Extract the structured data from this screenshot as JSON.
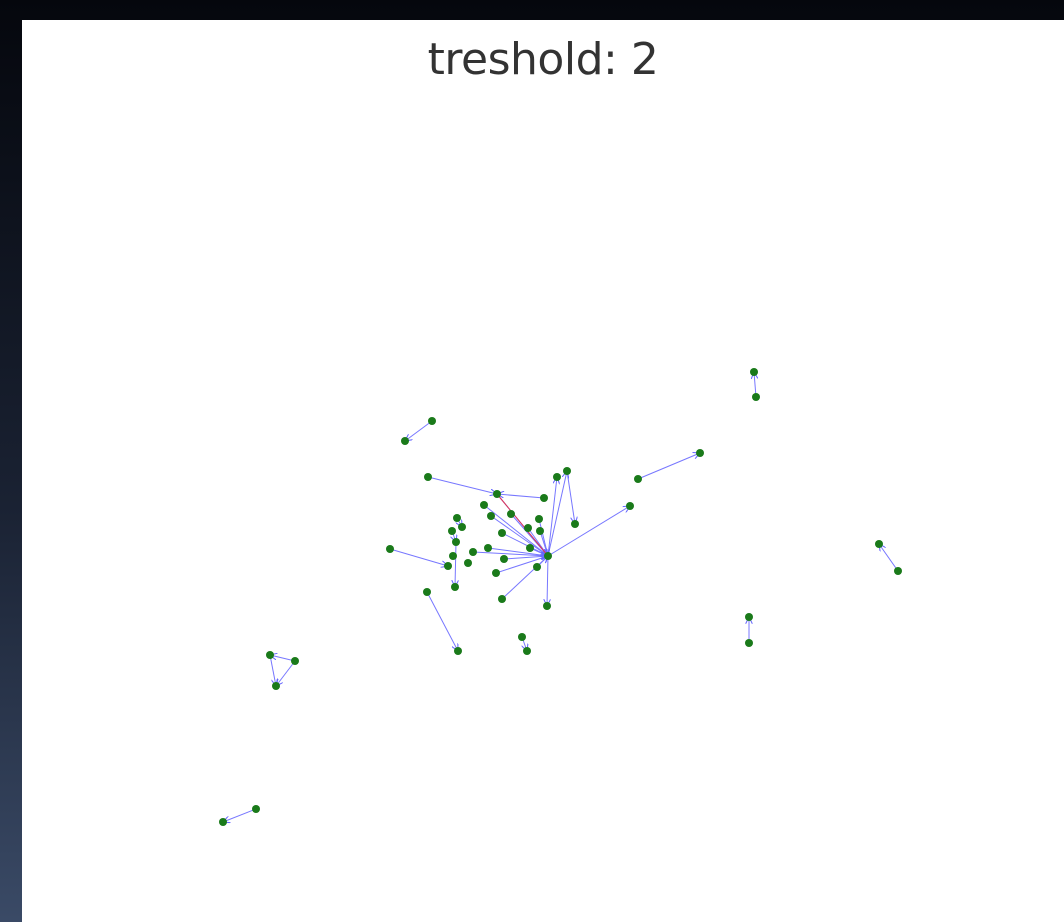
{
  "title": "treshold: 2"
}
